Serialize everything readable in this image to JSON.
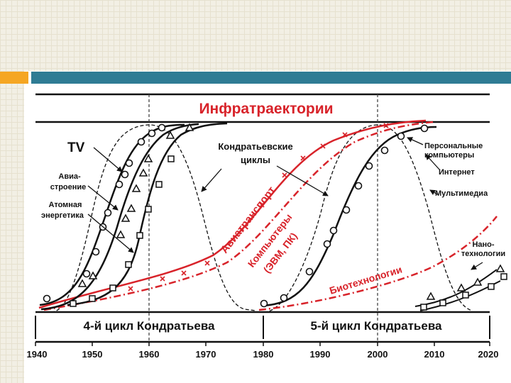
{
  "title": "Инфратраектории",
  "labels": {
    "tv": "TV",
    "aviation_l1": "Авиа-",
    "aviation_l2": "строение",
    "nuclear_l1": "Атомная",
    "nuclear_l2": "энергетика",
    "kondratiev_l1": "Кондратьевские",
    "kondratiev_l2": "циклы",
    "air_transport": "Авиатранспорт",
    "computers_l1": "Компьютеры",
    "computers_l2": "(ЭВМ, ПК)",
    "biotech": "Биотехнологии",
    "pc_l1": "Персональные",
    "pc_l2": "компьютеры",
    "internet": "Интернет",
    "multimedia": "Мультимедиа",
    "nano_l1": "Нано-",
    "nano_l2": "технологии"
  },
  "cycles": {
    "fourth": "4-й цикл Кондратьева",
    "fifth": "5-й цикл Кондратьева"
  },
  "years": [
    "1940",
    "1950",
    "1960",
    "1970",
    "1980",
    "1990",
    "2000",
    "2010",
    "2020"
  ],
  "colors": {
    "red": "#d8232a",
    "black": "#111111"
  }
}
